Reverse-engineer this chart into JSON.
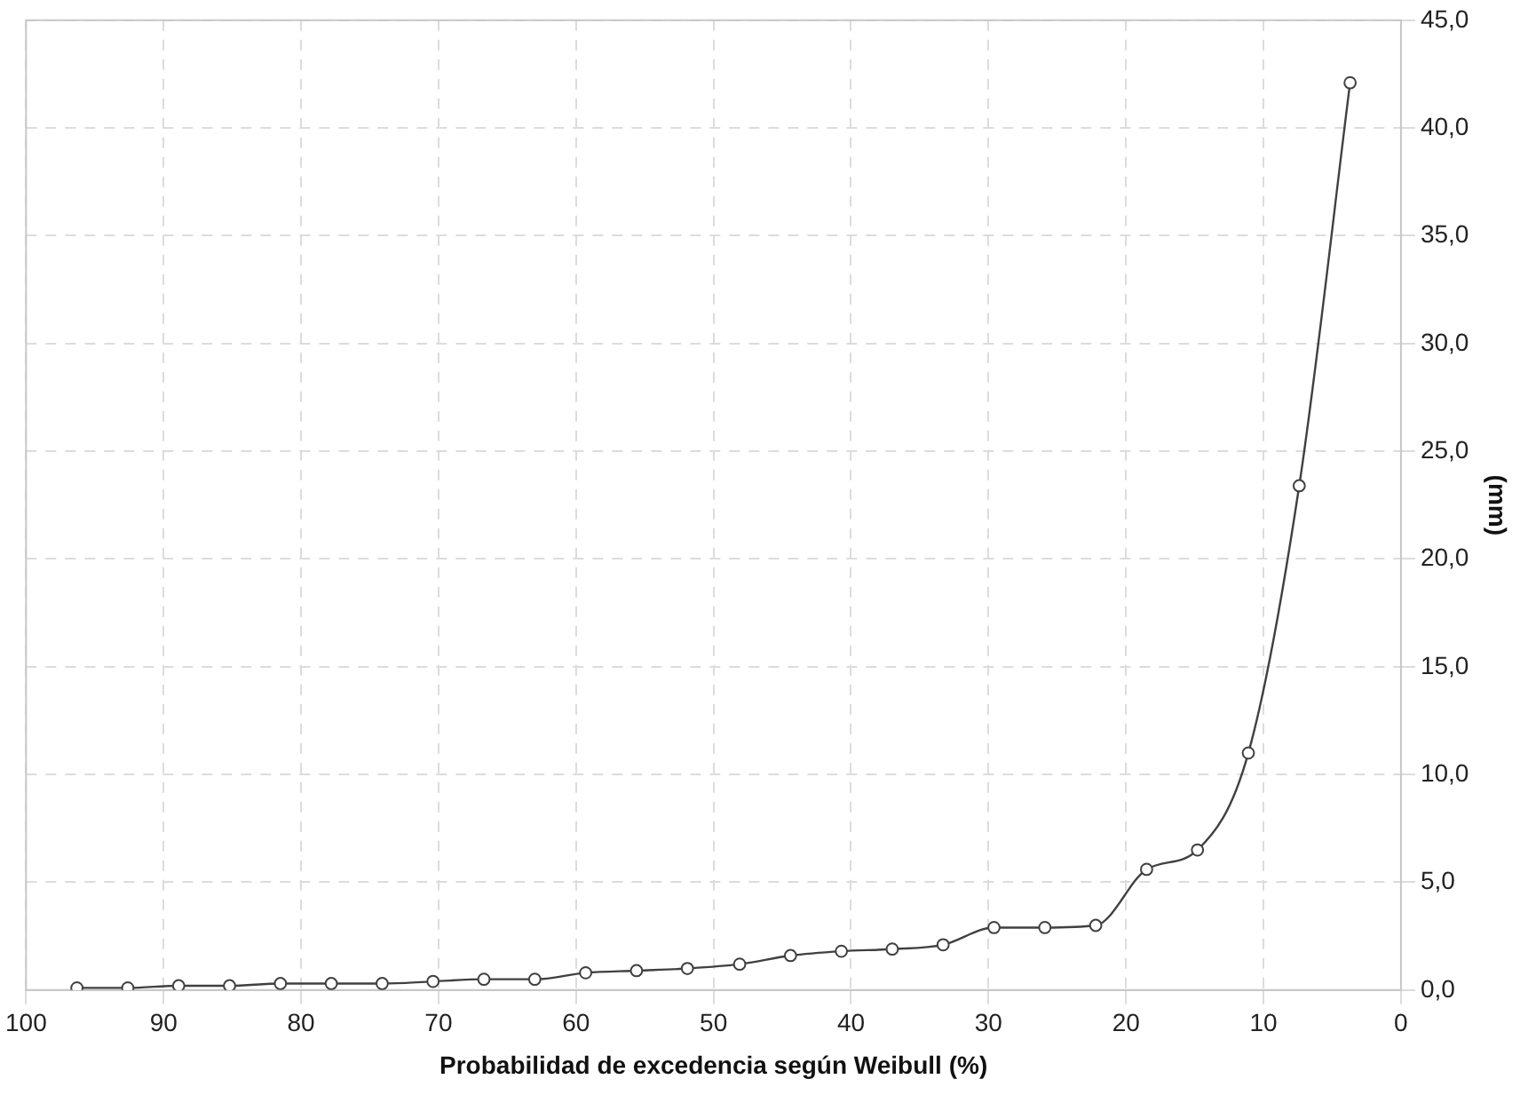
{
  "chart_data": {
    "type": "line",
    "xlabel": "Probabilidad de excedencia según Weibull (%)",
    "ylabel": "(mm)",
    "x": [
      96.3,
      92.6,
      88.9,
      85.2,
      81.5,
      77.8,
      74.1,
      70.4,
      66.7,
      63.0,
      59.3,
      55.6,
      51.9,
      48.1,
      44.4,
      40.7,
      37.0,
      33.3,
      29.6,
      25.9,
      22.2,
      18.5,
      14.8,
      11.1,
      7.4,
      3.7
    ],
    "series": [
      {
        "color": "#404040",
        "values": [
          0.1,
          0.1,
          0.2,
          0.2,
          0.3,
          0.3,
          0.3,
          0.4,
          0.5,
          0.5,
          0.8,
          0.9,
          1.0,
          1.2,
          1.6,
          1.8,
          1.9,
          2.1,
          2.9,
          2.9,
          3.0,
          5.6,
          6.5,
          11.0,
          23.4,
          42.1
        ]
      }
    ],
    "xlim": [
      100,
      0
    ],
    "xticks": [
      100,
      90,
      80,
      70,
      60,
      50,
      40,
      30,
      20,
      10,
      0
    ],
    "ylim": [
      0,
      45
    ],
    "yticks": [
      {
        "value": 0,
        "label": "0,0"
      },
      {
        "value": 5,
        "label": "5,0"
      },
      {
        "value": 10,
        "label": "10,0"
      },
      {
        "value": 15,
        "label": "15,0"
      },
      {
        "value": 20,
        "label": "20,0"
      },
      {
        "value": 25,
        "label": "25,0"
      },
      {
        "value": 30,
        "label": "30,0"
      },
      {
        "value": 35,
        "label": "35,0"
      },
      {
        "value": 40,
        "label": "40,0"
      },
      {
        "value": 45,
        "label": "45,0"
      }
    ],
    "grid": true,
    "legend": false,
    "marker": "circle",
    "line_style": "solid"
  }
}
